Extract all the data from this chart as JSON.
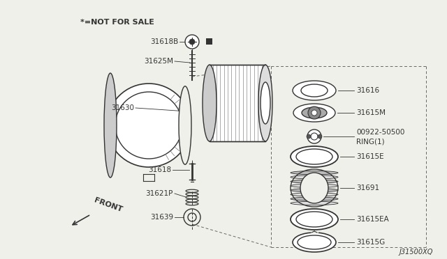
{
  "background_color": "#f0f0eb",
  "diagram_id": "J31500XQ",
  "not_for_sale_text": "*=NOT FOR SALE",
  "front_label": "FRONT",
  "dark": "#333333",
  "mid": "#666666",
  "light_gray": "#aaaaaa",
  "fig_w": 6.4,
  "fig_h": 3.72,
  "dpi": 100
}
